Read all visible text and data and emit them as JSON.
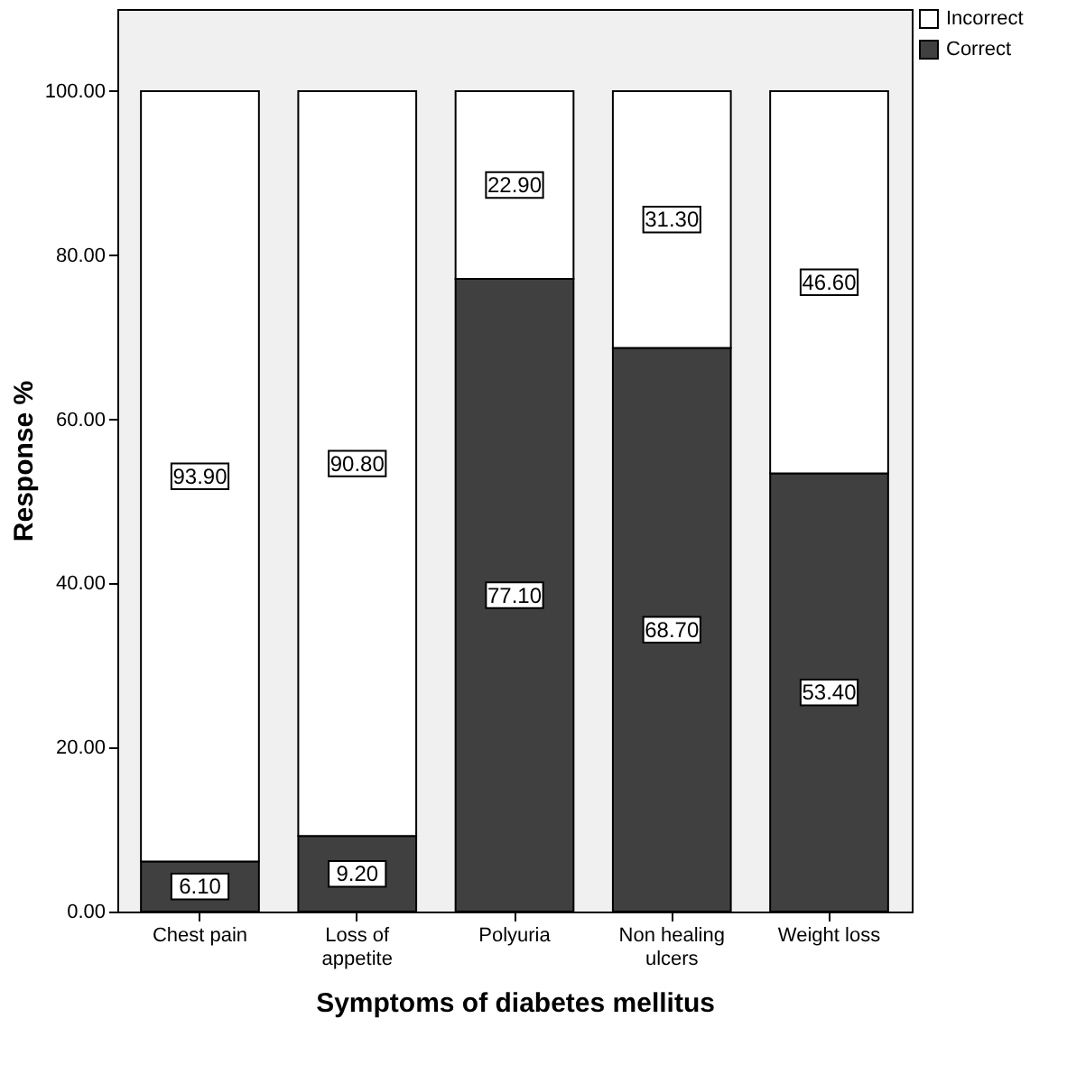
{
  "chart_data": {
    "type": "bar",
    "stacked": true,
    "xlabel": "Symptoms of diabetes mellitus",
    "ylabel": "Response %",
    "categories": [
      "Chest pain",
      "Loss of appetite",
      "Polyuria",
      "Non healing ulcers",
      "Weight loss"
    ],
    "series": [
      {
        "name": "Correct",
        "color": "#404040",
        "values": [
          6.1,
          9.2,
          77.1,
          68.7,
          53.4
        ],
        "value_labels": [
          "6.10",
          "9.20",
          "77.10",
          "68.70",
          "53.40"
        ]
      },
      {
        "name": "Incorrect",
        "color": "#ffffff",
        "values": [
          93.9,
          90.8,
          22.9,
          31.3,
          46.6
        ],
        "value_labels": [
          "93.90",
          "90.80",
          "22.90",
          "31.30",
          "46.60"
        ]
      }
    ],
    "ylim": [
      0,
      110
    ],
    "yticks": [
      {
        "value": 0,
        "label": "0.00"
      },
      {
        "value": 20,
        "label": "20.00"
      },
      {
        "value": 40,
        "label": "40.00"
      },
      {
        "value": 60,
        "label": "60.00"
      },
      {
        "value": 80,
        "label": "80.00"
      },
      {
        "value": 100,
        "label": "100.00"
      }
    ],
    "legend": "top right",
    "grid": false
  }
}
